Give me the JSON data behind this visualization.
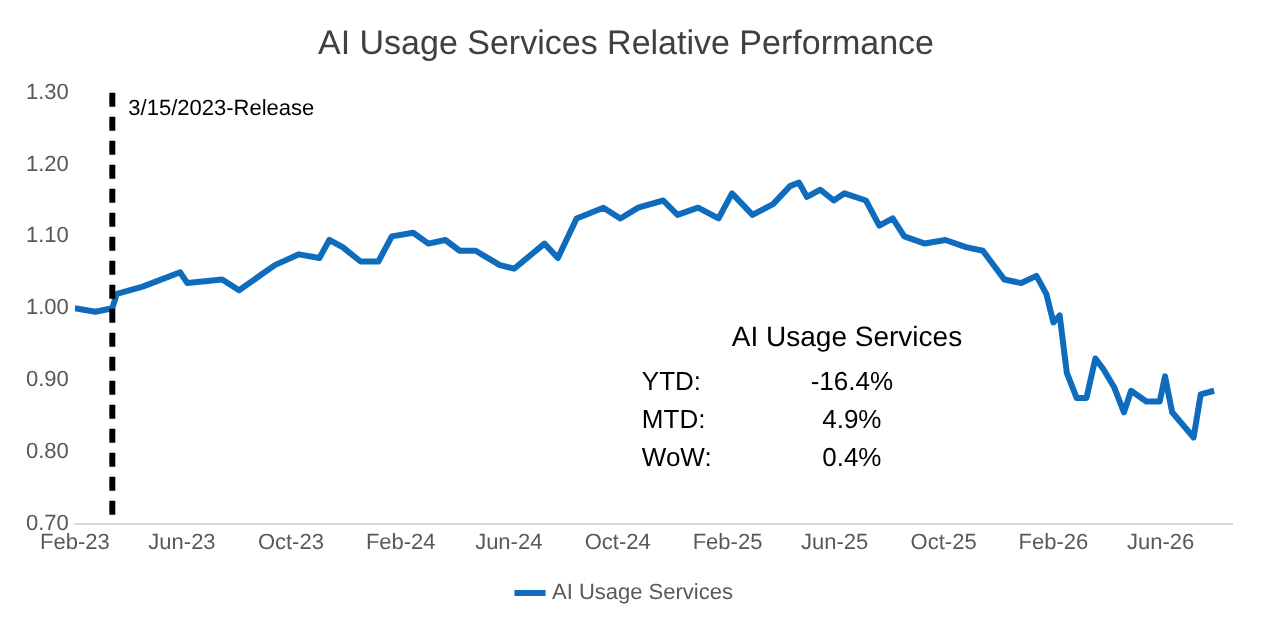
{
  "chart_data": {
    "type": "line",
    "title": "AI Usage Services Relative Performance",
    "x": [
      "2023-02-01",
      "2023-02-24",
      "2023-03-15",
      "2023-03-20",
      "2023-04-18",
      "2023-05-30",
      "2023-06-07",
      "2023-07-16",
      "2023-08-04",
      "2023-09-13",
      "2023-10-10",
      "2023-11-02",
      "2023-11-13",
      "2023-11-28",
      "2023-12-18",
      "2024-01-07",
      "2024-01-22",
      "2024-02-15",
      "2024-03-03",
      "2024-03-22",
      "2024-04-07",
      "2024-04-25",
      "2024-05-22",
      "2024-06-07",
      "2024-07-11",
      "2024-07-26",
      "2024-08-16",
      "2024-09-15",
      "2024-10-04",
      "2024-10-24",
      "2024-11-21",
      "2024-12-07",
      "2024-12-30",
      "2025-01-22",
      "2025-02-06",
      "2025-03-01",
      "2025-03-24",
      "2025-04-12",
      "2025-04-22",
      "2025-05-01",
      "2025-05-16",
      "2025-05-31",
      "2025-06-12",
      "2025-07-06",
      "2025-07-21",
      "2025-08-05",
      "2025-08-18",
      "2025-09-10",
      "2025-10-03",
      "2025-10-26",
      "2025-11-14",
      "2025-12-08",
      "2025-12-27",
      "2026-01-13",
      "2026-01-24",
      "2026-02-01",
      "2026-02-08",
      "2026-02-16",
      "2026-02-27",
      "2026-03-10",
      "2026-03-20",
      "2026-03-29",
      "2026-04-10",
      "2026-04-21",
      "2026-04-29",
      "2026-05-16",
      "2026-05-31",
      "2026-06-06",
      "2026-06-14",
      "2026-07-08",
      "2026-07-16",
      "2026-07-31"
    ],
    "series": [
      {
        "name": "AI Usage Services",
        "color": "#0f6cbd",
        "values": [
          1.0,
          0.995,
          1.0,
          1.02,
          1.03,
          1.05,
          1.035,
          1.04,
          1.025,
          1.06,
          1.075,
          1.07,
          1.095,
          1.085,
          1.065,
          1.065,
          1.1,
          1.105,
          1.09,
          1.095,
          1.08,
          1.08,
          1.06,
          1.055,
          1.09,
          1.07,
          1.125,
          1.14,
          1.125,
          1.14,
          1.15,
          1.13,
          1.14,
          1.125,
          1.16,
          1.13,
          1.145,
          1.17,
          1.175,
          1.155,
          1.165,
          1.15,
          1.16,
          1.15,
          1.115,
          1.125,
          1.1,
          1.09,
          1.095,
          1.085,
          1.08,
          1.04,
          1.035,
          1.045,
          1.02,
          0.98,
          0.99,
          0.91,
          0.875,
          0.875,
          0.93,
          0.915,
          0.89,
          0.855,
          0.885,
          0.87,
          0.87,
          0.905,
          0.855,
          0.82,
          0.88,
          0.885
        ]
      }
    ],
    "xlim": [
      "2023-02-01",
      "2026-08-20"
    ],
    "xticks": [
      {
        "value": "2023-02-01",
        "label": "Feb-23"
      },
      {
        "value": "2023-06-01",
        "label": "Jun-23"
      },
      {
        "value": "2023-10-01",
        "label": "Oct-23"
      },
      {
        "value": "2024-02-01",
        "label": "Feb-24"
      },
      {
        "value": "2024-06-01",
        "label": "Jun-24"
      },
      {
        "value": "2024-10-01",
        "label": "Oct-24"
      },
      {
        "value": "2025-02-01",
        "label": "Feb-25"
      },
      {
        "value": "2025-06-01",
        "label": "Jun-25"
      },
      {
        "value": "2025-10-01",
        "label": "Oct-25"
      },
      {
        "value": "2026-02-01",
        "label": "Feb-26"
      },
      {
        "value": "2026-06-01",
        "label": "Jun-26"
      }
    ],
    "ylim": [
      0.7,
      1.3
    ],
    "yticks": [
      {
        "value": 0.7,
        "label": "0.70"
      },
      {
        "value": 0.8,
        "label": "0.80"
      },
      {
        "value": 0.9,
        "label": "0.90"
      },
      {
        "value": 1.0,
        "label": "1.00"
      },
      {
        "value": 1.1,
        "label": "1.10"
      },
      {
        "value": 1.2,
        "label": "1.20"
      },
      {
        "value": 1.3,
        "label": "1.30"
      }
    ],
    "ref_lines": [
      {
        "axis": "x",
        "value": "2023-03-15",
        "label": "3/15/2023-Release",
        "color": "#000000",
        "line_style": "dashed"
      }
    ],
    "annotations": [
      "AI Usage Services",
      "YTD:",
      "-16.4%",
      "MTD:",
      "4.9%",
      "WoW:",
      "0.4%"
    ],
    "legend": "bottom",
    "grid": false,
    "marker": "none",
    "line_style": "solid"
  }
}
